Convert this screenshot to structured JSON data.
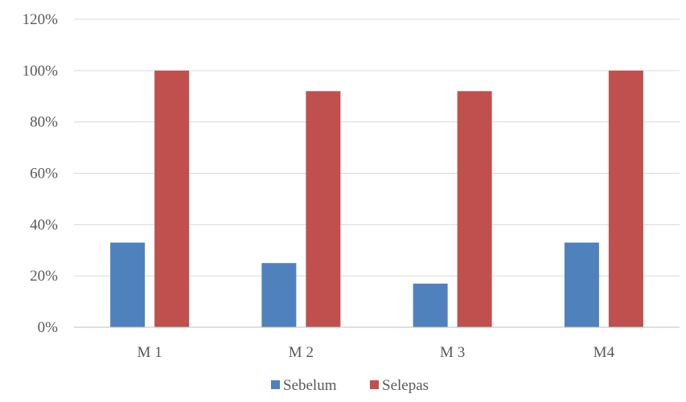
{
  "chart_data": {
    "type": "bar",
    "categories": [
      "M 1",
      "M 2",
      "M 3",
      "M4"
    ],
    "series": [
      {
        "name": "Sebelum",
        "values": [
          33,
          25,
          17,
          33
        ],
        "color": "#4f81bd"
      },
      {
        "name": "Selepas",
        "values": [
          100,
          92,
          92,
          100
        ],
        "color": "#c0504d"
      }
    ],
    "ylim": [
      0,
      120
    ],
    "yticks": [
      "0%",
      "20%",
      "40%",
      "60%",
      "80%",
      "100%",
      "120%"
    ],
    "ytick_values": [
      0,
      20,
      40,
      60,
      80,
      100,
      120
    ],
    "grid": true,
    "legend_position": "bottom",
    "title": "",
    "xlabel": "",
    "ylabel": ""
  }
}
